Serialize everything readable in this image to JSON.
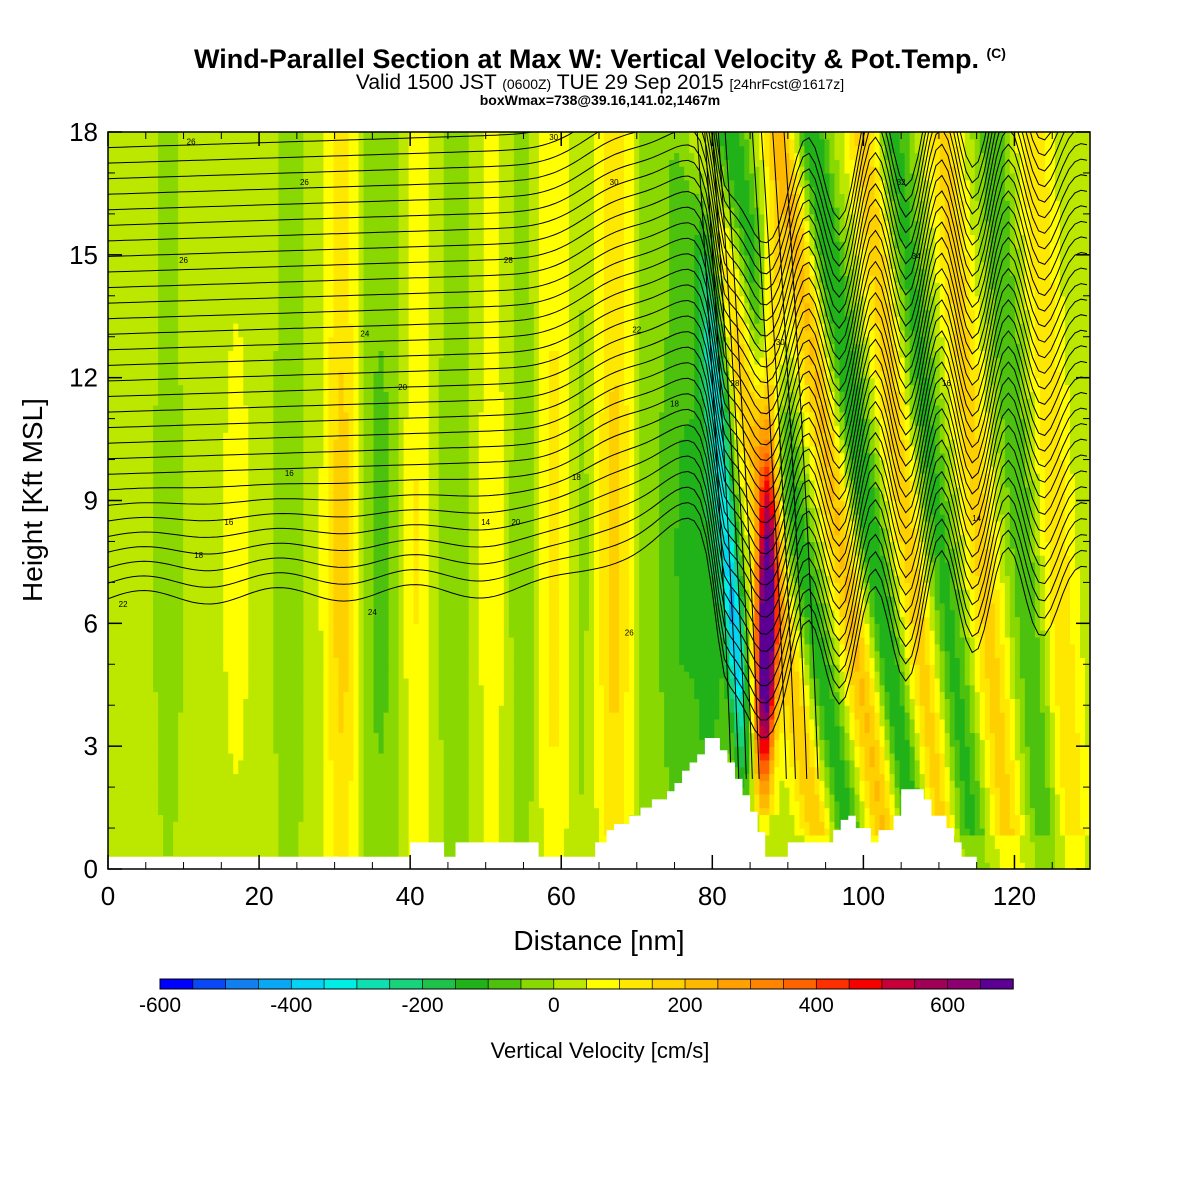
{
  "title": {
    "main": "Wind-Parallel Section at Max W: Vertical Velocity & Pot.Temp.",
    "copyright": "(C)",
    "valid_prefix": "Valid 1500 JST",
    "valid_utc": "(0600Z)",
    "valid_date": "TUE 29 Sep 2015",
    "forecast": "[24hrFcst@1617z]",
    "boxinfo": "boxWmax=738@39.16,141.02,1467m"
  },
  "colors": {
    "background": "#ffffff",
    "terrain": "#ffffff",
    "contour_line": "#000000",
    "colorbar": [
      "#0000ff",
      "#0a48f5",
      "#1180ee",
      "#0aa7f5",
      "#05d2f5",
      "#00eee6",
      "#0ee0b0",
      "#18d27c",
      "#1ec24a",
      "#20b218",
      "#4cc20e",
      "#8ad802",
      "#bce800",
      "#ffff00",
      "#ffe800",
      "#ffd000",
      "#ffb800",
      "#ffa000",
      "#ff8400",
      "#ff6400",
      "#ff2f00",
      "#f70000",
      "#c8003a",
      "#a00055",
      "#8c0070",
      "#5c0093"
    ]
  },
  "chart_data": {
    "type": "heatmap",
    "xlabel": "Distance [nm]",
    "ylabel": "Height [Kft MSL]",
    "xlim": [
      0,
      130
    ],
    "ylim": [
      0,
      18
    ],
    "xticks": [
      0,
      20,
      40,
      60,
      80,
      100,
      120
    ],
    "yticks": [
      0,
      3,
      6,
      9,
      12,
      15,
      18
    ],
    "colorbar": {
      "label": "Vertical Velocity [cm/s]",
      "min": -600,
      "max": 750,
      "step": 50,
      "ticks": [
        -600,
        -400,
        -200,
        0,
        200,
        400,
        600
      ]
    },
    "contour_variable": "Potential Temperature",
    "contour_labels": [
      "26",
      "30",
      "26",
      "30",
      "26",
      "28",
      "24",
      "22",
      "20",
      "18",
      "16",
      "18",
      "16",
      "14",
      "18",
      "20",
      "22",
      "24",
      "26",
      "28",
      "30",
      "32",
      "34",
      "16",
      "14"
    ],
    "max_w": {
      "value": 738,
      "units": "cm/s",
      "lat": 39.16,
      "lon": 141.02,
      "height_m": 1467
    },
    "updraft_core": {
      "x": 87.5,
      "y_bottom": 1.5,
      "y_top": 10.5,
      "peak_w": 738
    },
    "downdraft_core": {
      "x": 84,
      "y_bottom": 2.2,
      "y_top": 8.5,
      "min_w": -350
    },
    "terrain": {
      "x": [
        0,
        40,
        40,
        44.5,
        44.5,
        46,
        46,
        57,
        57,
        60,
        60,
        64.5,
        64.5,
        66,
        66,
        67,
        67,
        69,
        69,
        70.5,
        70.5,
        72,
        72,
        74,
        74,
        75,
        75,
        76,
        76,
        77,
        77,
        78,
        78,
        79,
        79,
        81,
        81,
        82,
        82,
        83,
        83,
        84,
        84,
        85,
        85,
        86,
        86,
        87,
        87,
        90,
        90,
        96,
        96,
        97,
        97,
        98,
        98,
        99,
        99,
        101,
        101,
        102,
        102,
        104,
        104,
        105,
        105,
        108,
        108,
        109,
        109,
        111,
        111,
        112,
        112,
        113,
        113,
        115,
        115,
        120,
        120,
        130
      ],
      "y": [
        0.3,
        0.3,
        0.65,
        0.65,
        0.3,
        0.3,
        0.65,
        0.65,
        0.3,
        0.3,
        0.3,
        0.3,
        0.65,
        0.65,
        0.95,
        0.95,
        1.1,
        1.1,
        1.3,
        1.3,
        1.5,
        1.5,
        1.7,
        1.7,
        1.9,
        1.9,
        2.1,
        2.1,
        2.4,
        2.4,
        2.6,
        2.6,
        2.8,
        2.8,
        3.2,
        3.2,
        2.9,
        2.9,
        2.6,
        2.6,
        2.2,
        2.2,
        1.8,
        1.8,
        1.4,
        1.4,
        0.9,
        0.9,
        0.3,
        0.3,
        0.65,
        0.65,
        0.95,
        0.95,
        1.2,
        1.2,
        1.3,
        1.3,
        1.0,
        1.0,
        0.65,
        0.65,
        0.95,
        0.95,
        1.3,
        1.3,
        1.95,
        1.95,
        1.7,
        1.7,
        1.3,
        1.3,
        1.0,
        1.0,
        0.65,
        0.65,
        0.3,
        0.3,
        0.0,
        0.0
      ]
    }
  }
}
